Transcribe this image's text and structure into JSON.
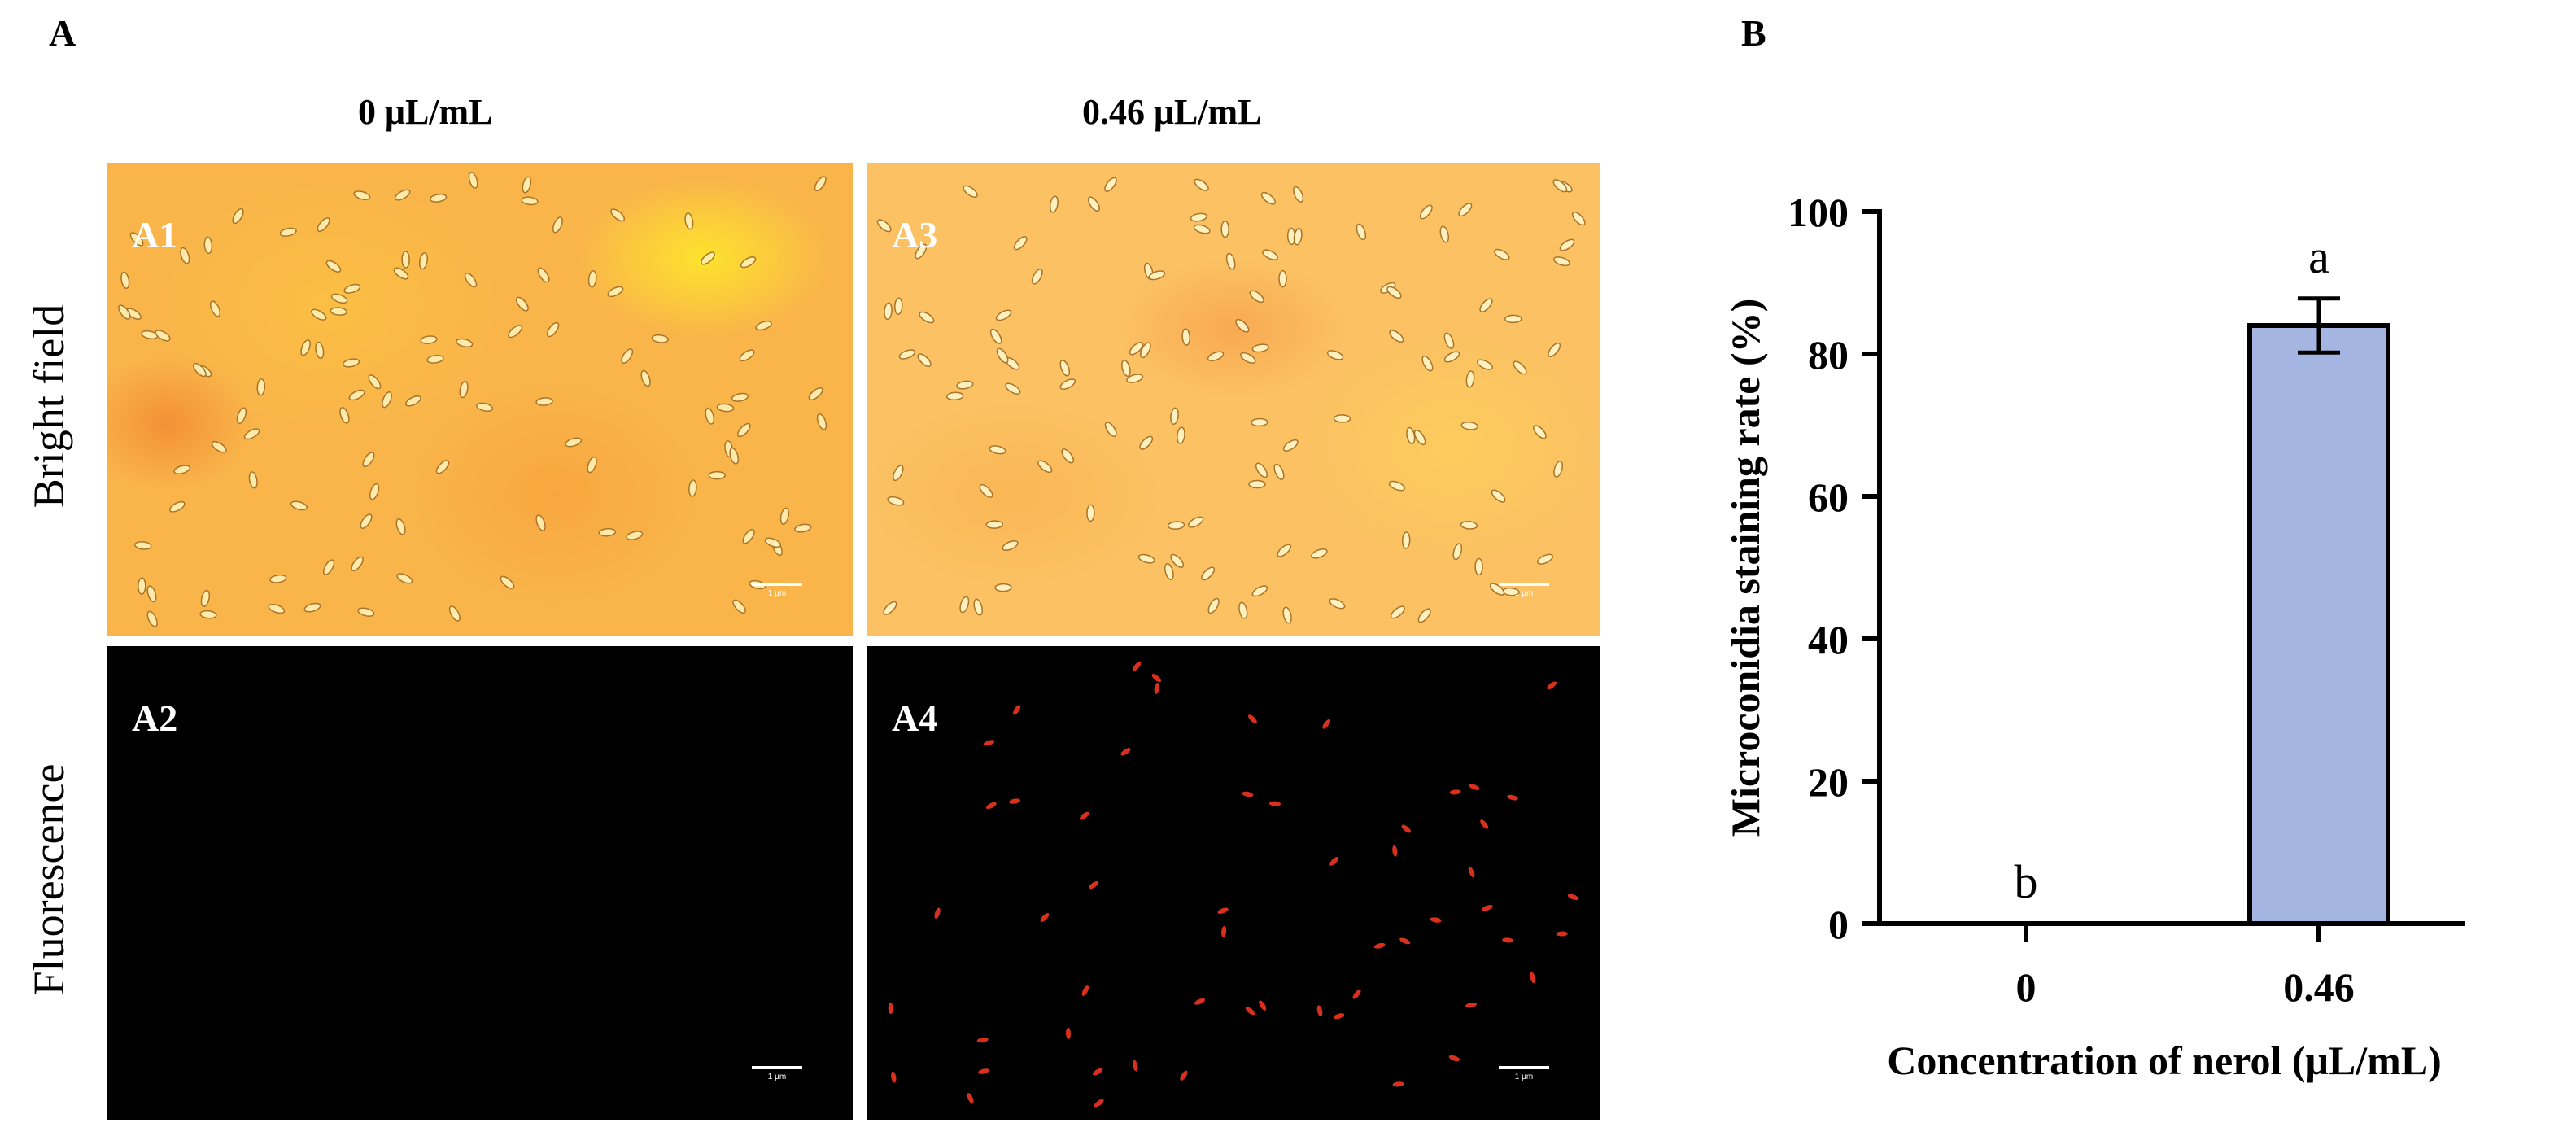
{
  "panel_a": {
    "letter": "A",
    "column_headers": [
      "0 μL/mL",
      "0.46 μL/mL"
    ],
    "row_headers": [
      "Bright field",
      "Fluorescence"
    ],
    "images": [
      {
        "tag": "A1",
        "scale_label": "1 μm",
        "kind": "bright"
      },
      {
        "tag": "A3",
        "scale_label": "1 μm",
        "kind": "bright"
      },
      {
        "tag": "A2",
        "scale_label": "1 μm",
        "kind": "fluorescence"
      },
      {
        "tag": "A4",
        "scale_label": "1 μm",
        "kind": "fluorescence"
      }
    ],
    "colors": {
      "bright_field": "#f9b54a",
      "fluorescence_bg": "#000000",
      "stained_cells": "#d8301c"
    }
  },
  "panel_b": {
    "letter": "B",
    "chart_data": {
      "type": "bar",
      "categories": [
        "0",
        "0.46"
      ],
      "values": [
        0,
        84
      ],
      "error": [
        0,
        3.8
      ],
      "significance_letters": [
        "b",
        "a"
      ],
      "ylabel": "Microconidia staining rate (%)",
      "xlabel": "Concentration of nerol (μL/mL)",
      "ylim": [
        0,
        100
      ],
      "yticks": [
        "0",
        "20",
        "40",
        "60",
        "80",
        "100"
      ],
      "bar_color": "#a3b5e0",
      "grid": false,
      "legend": "none"
    }
  }
}
